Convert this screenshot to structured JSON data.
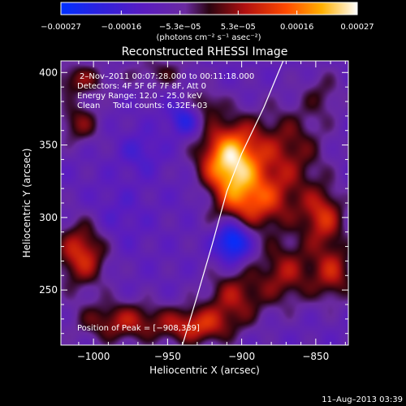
{
  "chart_data": {
    "type": "heatmap",
    "title": "Reconstructed RHESSI Image",
    "xlabel": "Heliocentric X (arcsec)",
    "ylabel": "Heliocentric Y (arcsec)",
    "xlim": [
      -1022,
      -828
    ],
    "ylim": [
      212,
      408
    ],
    "x_ticks": [
      -1000,
      -950,
      -900,
      -850
    ],
    "y_ticks": [
      250,
      300,
      350,
      400
    ],
    "x_tick_labels": [
      "−1000",
      "−950",
      "−900",
      "−850"
    ],
    "y_tick_labels": [
      "250",
      "300",
      "350",
      "400"
    ],
    "grid": false,
    "colorbar": {
      "range": [
        -0.00027,
        0.00027
      ],
      "tick_values": [
        -0.00027,
        -0.00016,
        -5.3e-05,
        5.3e-05,
        0.00016,
        0.00027
      ],
      "tick_labels": [
        "−0.00027",
        "−0.00016",
        "−5.3e−05",
        "5.3e−05",
        "0.00016",
        "0.00027"
      ],
      "units_label": "(photons cm⁻² s⁻¹ asec⁻²)",
      "colormap": "rainbow-blue-purple-red-orange-yellow-white"
    },
    "annotations": {
      "time_range": "2–Nov–2011 00:07:28.000 to 00:11:18.000",
      "detectors": "Detectors: 4F 5F 6F 7F 8F, Att 0",
      "energy_range": "Energy Range: 12.0 – 25.0 keV",
      "method_counts": "Clean     Total counts: 6.32E+03",
      "peak_position": "Position of Peak = [−908,339]"
    },
    "peak": {
      "x": -908,
      "y": 339
    },
    "sources": [
      {
        "x": -908,
        "y": 339,
        "sx": 14,
        "sy": 18,
        "amp": 0.00032
      },
      {
        "x": -893,
        "y": 310,
        "sx": 20,
        "sy": 14,
        "amp": 0.00018
      },
      {
        "x": -870,
        "y": 345,
        "sx": 18,
        "sy": 22,
        "amp": 0.00013
      },
      {
        "x": -845,
        "y": 300,
        "sx": 10,
        "sy": 14,
        "amp": 0.00017
      },
      {
        "x": -838,
        "y": 262,
        "sx": 10,
        "sy": 14,
        "amp": 0.00015
      },
      {
        "x": -870,
        "y": 262,
        "sx": 14,
        "sy": 16,
        "amp": 0.00014
      },
      {
        "x": -905,
        "y": 245,
        "sx": 14,
        "sy": 14,
        "amp": 0.00014
      },
      {
        "x": -930,
        "y": 225,
        "sx": 16,
        "sy": 9,
        "amp": 0.00017
      },
      {
        "x": -980,
        "y": 228,
        "sx": 22,
        "sy": 10,
        "amp": 0.00015
      },
      {
        "x": -1008,
        "y": 275,
        "sx": 12,
        "sy": 16,
        "amp": 0.00019
      },
      {
        "x": -1010,
        "y": 365,
        "sx": 10,
        "sy": 10,
        "amp": 0.00012
      },
      {
        "x": -1010,
        "y": 395,
        "sx": 14,
        "sy": 8,
        "amp": 0.00012
      },
      {
        "x": -955,
        "y": 400,
        "sx": 16,
        "sy": 8,
        "amp": 8e-05
      },
      {
        "x": -925,
        "y": 378,
        "sx": 8,
        "sy": 8,
        "amp": 0.0001
      },
      {
        "x": -845,
        "y": 385,
        "sx": 10,
        "sy": 12,
        "amp": 7e-05
      },
      {
        "x": -906,
        "y": 284,
        "sx": 8,
        "sy": 10,
        "amp": -0.00022
      },
      {
        "x": -938,
        "y": 368,
        "sx": 8,
        "sy": 8,
        "amp": -0.00012
      },
      {
        "x": -968,
        "y": 345,
        "sx": 10,
        "sy": 10,
        "amp": -6e-05
      },
      {
        "x": -985,
        "y": 300,
        "sx": 14,
        "sy": 16,
        "amp": -4e-05
      },
      {
        "x": -925,
        "y": 315,
        "sx": 12,
        "sy": 10,
        "amp": -6e-05
      }
    ],
    "limb_curve": [
      {
        "x": -940,
        "y": 212
      },
      {
        "x": -930,
        "y": 246
      },
      {
        "x": -920,
        "y": 281
      },
      {
        "x": -910,
        "y": 318
      },
      {
        "x": -900,
        "y": 344
      },
      {
        "x": -885,
        "y": 376
      },
      {
        "x": -872,
        "y": 408
      }
    ]
  },
  "footer": {
    "timestamp": "11–Aug–2013 03:39"
  }
}
